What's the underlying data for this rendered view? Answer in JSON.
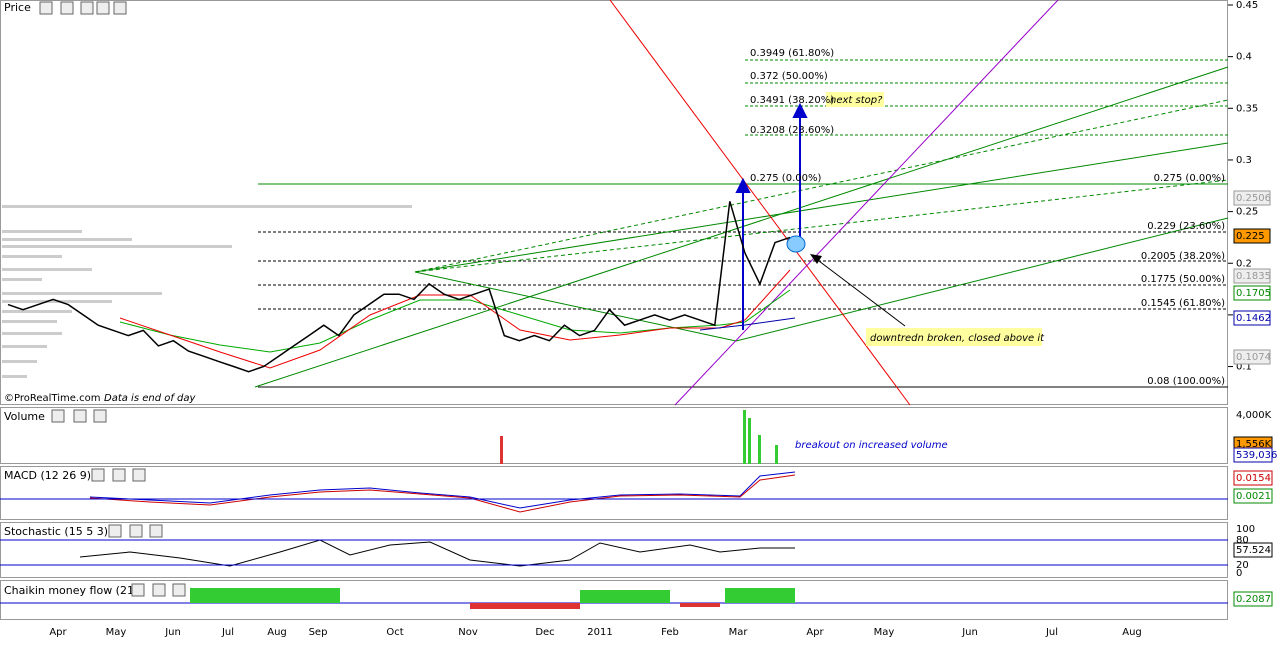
{
  "price_panel": {
    "title": "Price",
    "footer": "©ProRealTime.com",
    "footer_note": "Data is end of day",
    "yticks": [
      0.45,
      0.4,
      0.35,
      0.3,
      0.25,
      0.2,
      0.15,
      0.1
    ],
    "closes": [
      0.16,
      0.155,
      0.16,
      0.165,
      0.16,
      0.15,
      0.14,
      0.135,
      0.13,
      0.135,
      0.12,
      0.125,
      0.115,
      0.11,
      0.105,
      0.1,
      0.095,
      0.1,
      0.11,
      0.12,
      0.13,
      0.14,
      0.13,
      0.15,
      0.16,
      0.17,
      0.17,
      0.165,
      0.18,
      0.17,
      0.165,
      0.17,
      0.175,
      0.13,
      0.125,
      0.13,
      0.125,
      0.14,
      0.13,
      0.135,
      0.155,
      0.14,
      0.145,
      0.15,
      0.145,
      0.15,
      0.145,
      0.14,
      0.26,
      0.21,
      0.18,
      0.22,
      0.225
    ],
    "fib_right": [
      "0.275 (0.00%)",
      "0.229 (23.60%)",
      "0.2005 (38.20%)",
      "0.1775 (50.00%)",
      "0.1545 (61.80%)",
      "0.08 (100.00%)"
    ],
    "fib_upper": [
      "0.3949 (61.80%)",
      "0.372 (50.00%)",
      "0.3491 (38.20%)",
      "0.3208 (23.60%)",
      "0.275 (0.00%)"
    ],
    "badges": [
      0.2506,
      0.225,
      0.1835,
      0.1705,
      0.1462,
      0.1074
    ],
    "note_target": "next stop?",
    "note_break": "downtredn broken, closed above it"
  },
  "volume_panel": {
    "title": "Volume",
    "tick": "4,000K",
    "badges": [
      "1,556K",
      "539,036"
    ],
    "note": "breakout on increased volume"
  },
  "macd_panel": {
    "title": "MACD (12 26 9)",
    "badges": [
      0.0154,
      0.0021
    ]
  },
  "stoch_panel": {
    "title": "Stochastic (15 5 3)",
    "ticks": [
      100,
      80,
      20,
      0
    ],
    "badge": 57.524
  },
  "cmf_panel": {
    "title": "Chaikin money flow (21)",
    "badge": 0.2087
  },
  "x_axis": [
    "Apr",
    "May",
    "Jun",
    "Jul",
    "Aug",
    "Sep",
    "Oct",
    "Nov",
    "Dec",
    "2011",
    "Feb",
    "Mar",
    "Apr",
    "May",
    "Jun",
    "Jul",
    "Aug"
  ]
}
